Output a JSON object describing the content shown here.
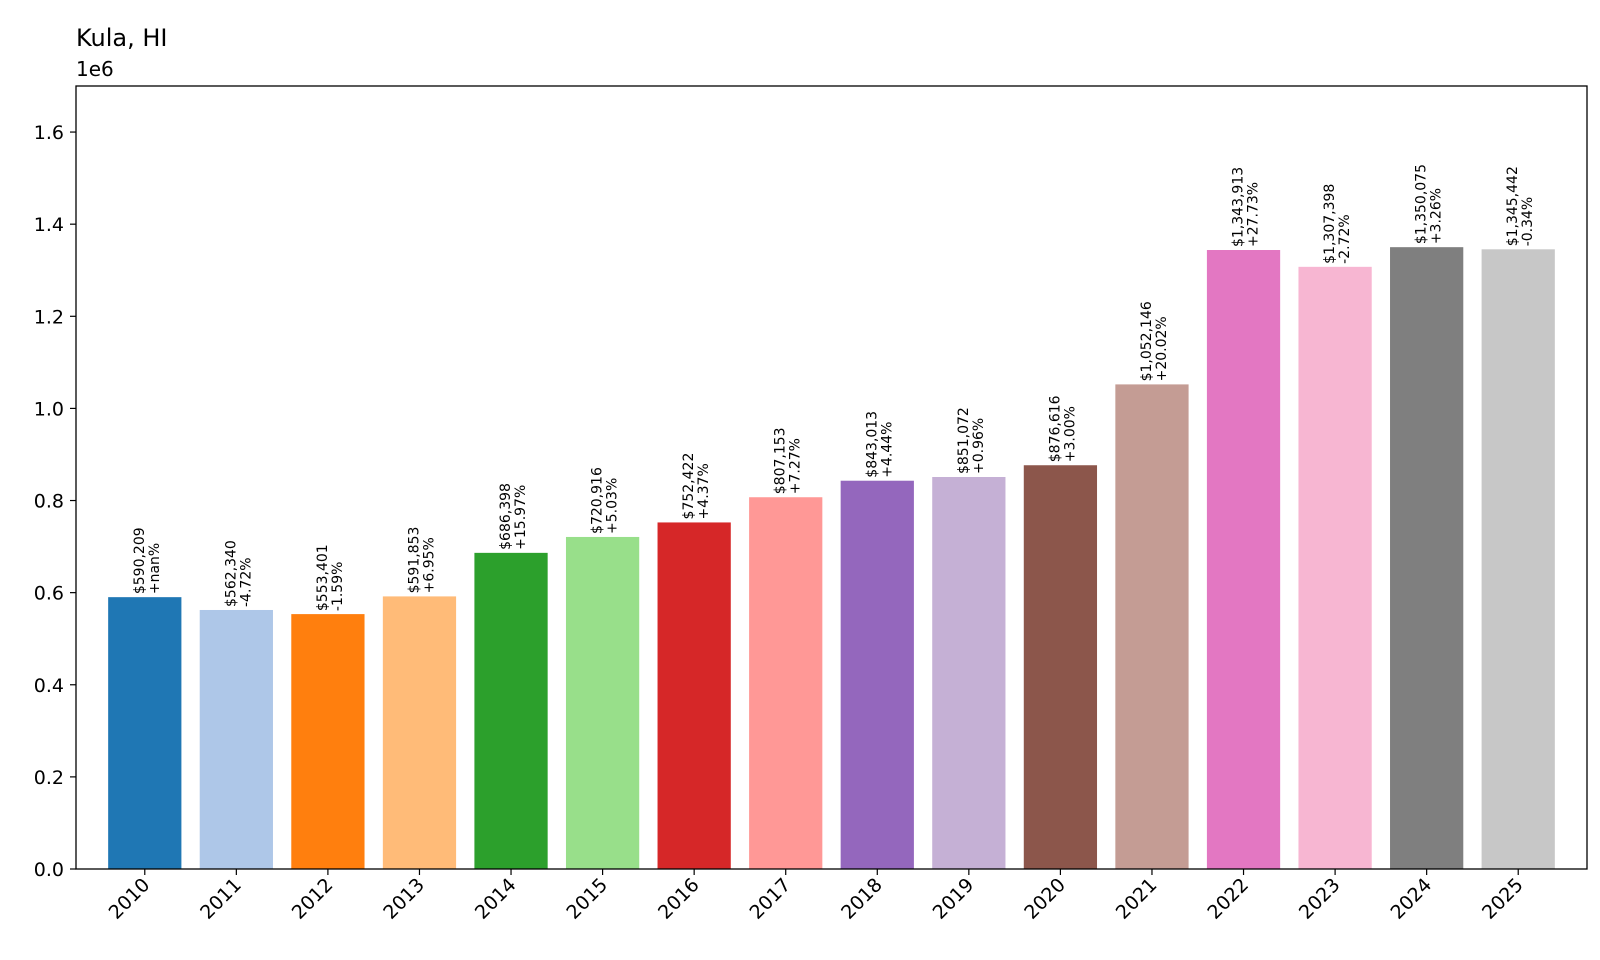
{
  "chart_data": {
    "type": "bar",
    "title": "Kula, HI",
    "offset_text": "1e6",
    "xlabel": "",
    "ylabel": "",
    "ylim": [
      0,
      1.7
    ],
    "yticks": [
      0.0,
      0.2,
      0.4,
      0.6,
      0.8,
      1.0,
      1.2,
      1.4,
      1.6
    ],
    "ytick_labels": [
      "0.0",
      "0.2",
      "0.4",
      "0.6",
      "0.8",
      "1.0",
      "1.2",
      "1.4",
      "1.6"
    ],
    "grid": false,
    "categories": [
      "2010",
      "2011",
      "2012",
      "2013",
      "2014",
      "2015",
      "2016",
      "2017",
      "2018",
      "2019",
      "2020",
      "2021",
      "2022",
      "2023",
      "2024",
      "2025"
    ],
    "values": [
      590209,
      562340,
      553401,
      591853,
      686398,
      720916,
      752422,
      807153,
      843013,
      851072,
      876616,
      1052146,
      1343913,
      1307398,
      1350075,
      1345442
    ],
    "value_labels": [
      "$590,209",
      "$562,340",
      "$553,401",
      "$591,853",
      "$686,398",
      "$720,916",
      "$752,422",
      "$807,153",
      "$843,013",
      "$851,072",
      "$876,616",
      "$1,052,146",
      "$1,343,913",
      "$1,307,398",
      "$1,350,075",
      "$1,345,442"
    ],
    "change_labels": [
      "+nan%",
      "-4.72%",
      "-1.59%",
      "+6.95%",
      "+15.97%",
      "+5.03%",
      "+4.37%",
      "+7.27%",
      "+4.44%",
      "+0.96%",
      "+3.00%",
      "+20.02%",
      "+27.73%",
      "-2.72%",
      "+3.26%",
      "-0.34%"
    ],
    "colors": [
      "#1f77b4",
      "#aec7e8",
      "#ff7f0e",
      "#ffbb78",
      "#2ca02c",
      "#98df8a",
      "#d62728",
      "#ff9896",
      "#9467bd",
      "#c5b0d5",
      "#8c564b",
      "#c49c94",
      "#e377c2",
      "#f7b6d2",
      "#7f7f7f",
      "#c7c7c7"
    ]
  }
}
